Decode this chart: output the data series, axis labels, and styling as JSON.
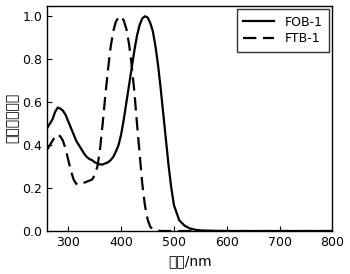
{
  "title": "",
  "xlabel": "波长/nm",
  "ylabel": "标准吸收强度",
  "xlim": [
    260,
    800
  ],
  "ylim": [
    0.0,
    1.05
  ],
  "xticks": [
    300,
    400,
    500,
    600,
    700,
    800
  ],
  "yticks": [
    0.0,
    0.2,
    0.4,
    0.6,
    0.8,
    1.0
  ],
  "ytick_labels": [
    "0.0",
    "0.2",
    "0.4",
    "0.6",
    "0.8",
    "1.0"
  ],
  "legend": [
    "FOB-1",
    "FTB-1"
  ],
  "fob1_x": [
    260,
    270,
    275,
    280,
    285,
    290,
    295,
    300,
    305,
    310,
    315,
    320,
    325,
    330,
    335,
    340,
    345,
    350,
    355,
    360,
    365,
    370,
    375,
    380,
    385,
    390,
    395,
    400,
    405,
    410,
    415,
    420,
    425,
    430,
    435,
    440,
    445,
    450,
    455,
    460,
    465,
    470,
    475,
    480,
    485,
    490,
    495,
    500,
    510,
    520,
    530,
    540,
    550,
    560,
    600,
    650,
    700,
    800
  ],
  "fob1_y": [
    0.48,
    0.52,
    0.555,
    0.575,
    0.57,
    0.56,
    0.54,
    0.51,
    0.48,
    0.45,
    0.42,
    0.4,
    0.38,
    0.36,
    0.345,
    0.335,
    0.33,
    0.32,
    0.315,
    0.31,
    0.31,
    0.315,
    0.32,
    0.33,
    0.345,
    0.37,
    0.4,
    0.45,
    0.52,
    0.6,
    0.68,
    0.76,
    0.84,
    0.91,
    0.96,
    0.99,
    1.0,
    0.995,
    0.97,
    0.93,
    0.86,
    0.77,
    0.66,
    0.54,
    0.42,
    0.3,
    0.2,
    0.12,
    0.05,
    0.025,
    0.012,
    0.006,
    0.003,
    0.002,
    0.0,
    0.0,
    0.0,
    0.0
  ],
  "ftb1_x": [
    260,
    265,
    270,
    275,
    280,
    285,
    290,
    295,
    300,
    305,
    310,
    315,
    320,
    325,
    330,
    335,
    340,
    345,
    350,
    355,
    360,
    365,
    370,
    375,
    380,
    385,
    390,
    395,
    400,
    405,
    410,
    415,
    420,
    425,
    430,
    435,
    440,
    445,
    450,
    455,
    460,
    465,
    470,
    480,
    500,
    550,
    700,
    800
  ],
  "ftb1_y": [
    0.38,
    0.4,
    0.42,
    0.44,
    0.45,
    0.44,
    0.42,
    0.38,
    0.33,
    0.28,
    0.24,
    0.22,
    0.215,
    0.22,
    0.225,
    0.23,
    0.235,
    0.24,
    0.26,
    0.3,
    0.38,
    0.5,
    0.63,
    0.75,
    0.855,
    0.93,
    0.975,
    0.995,
    1.0,
    0.98,
    0.94,
    0.87,
    0.77,
    0.65,
    0.5,
    0.36,
    0.22,
    0.12,
    0.055,
    0.02,
    0.007,
    0.003,
    0.001,
    0.0,
    0.0,
    0.0,
    0.0,
    0.0
  ],
  "line_color": "#000000",
  "background_color": "#ffffff",
  "linewidth": 1.6
}
